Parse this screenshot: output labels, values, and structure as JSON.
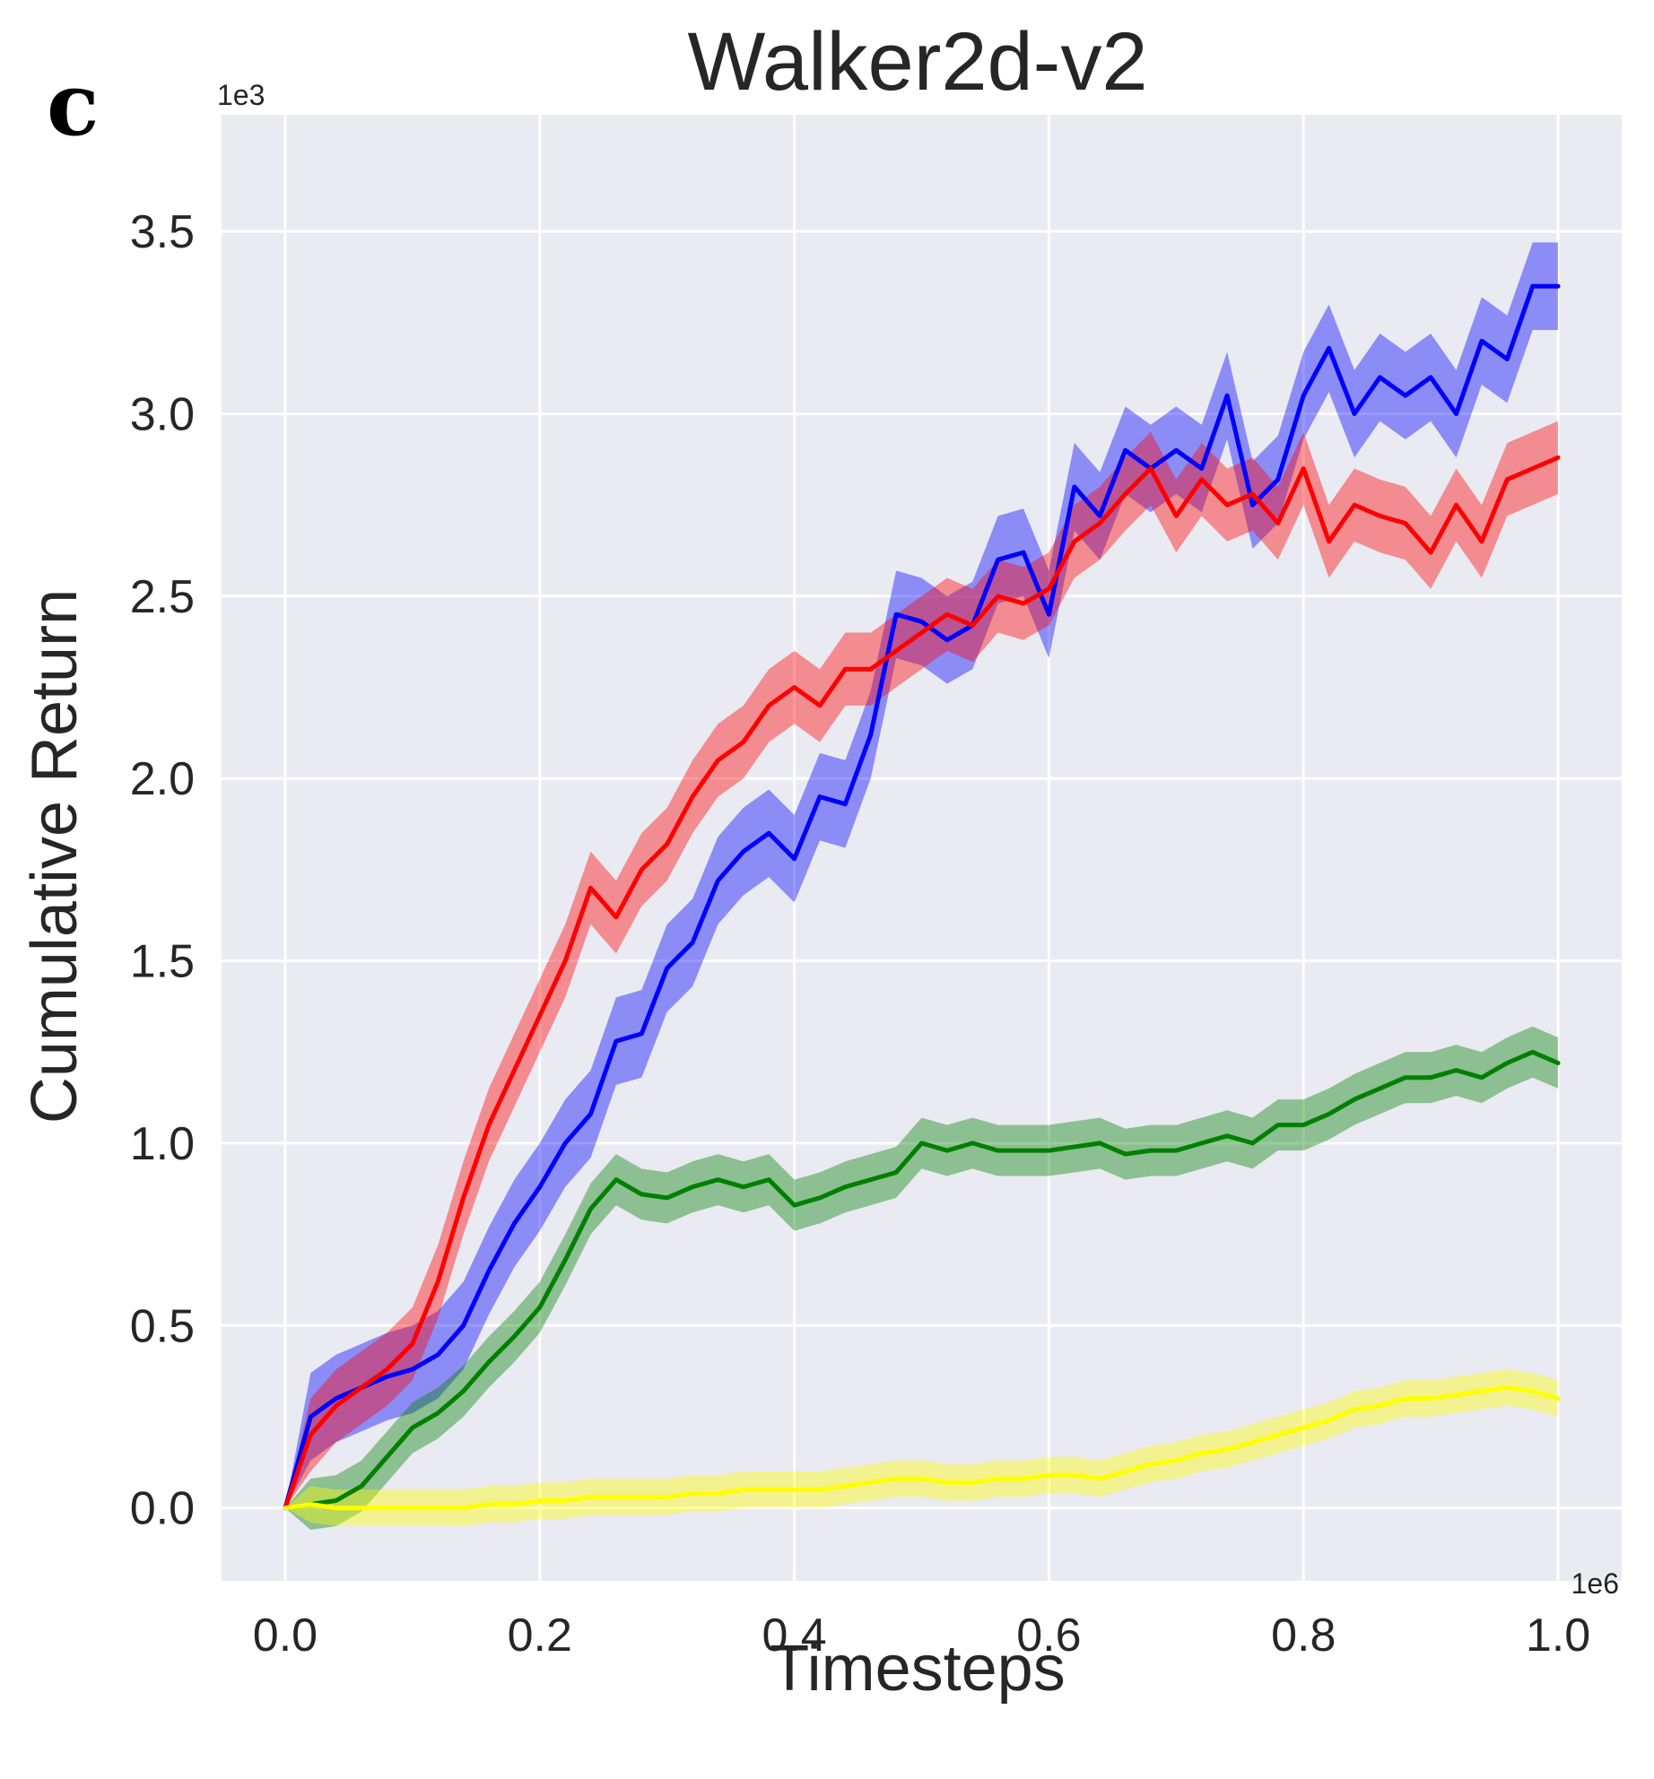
{
  "panel_label": "c",
  "chart_data": {
    "type": "line",
    "title": "Walker2d-v2",
    "xlabel": "Timesteps",
    "ylabel": "Cumulative Return",
    "x_multiplier": "1e6",
    "y_multiplier": "1e3",
    "xlim": [
      -0.05,
      1.05
    ],
    "ylim": [
      -0.2,
      3.82
    ],
    "xticks": [
      0.0,
      0.2,
      0.4,
      0.6,
      0.8,
      1.0
    ],
    "xtick_labels": [
      "0.0",
      "0.2",
      "0.4",
      "0.6",
      "0.8",
      "1.0"
    ],
    "yticks": [
      0.0,
      0.5,
      1.0,
      1.5,
      2.0,
      2.5,
      3.0,
      3.5
    ],
    "ytick_labels": [
      "0.0",
      "0.5",
      "1.0",
      "1.5",
      "2.0",
      "2.5",
      "3.0",
      "3.5"
    ],
    "grid": true,
    "background": "#eaeaf2",
    "x": [
      0.0,
      0.02,
      0.04,
      0.06,
      0.08,
      0.1,
      0.12,
      0.14,
      0.16,
      0.18,
      0.2,
      0.22,
      0.24,
      0.26,
      0.28,
      0.3,
      0.32,
      0.34,
      0.36,
      0.38,
      0.4,
      0.42,
      0.44,
      0.46,
      0.48,
      0.5,
      0.52,
      0.54,
      0.56,
      0.58,
      0.6,
      0.62,
      0.64,
      0.66,
      0.68,
      0.7,
      0.72,
      0.74,
      0.76,
      0.78,
      0.8,
      0.82,
      0.84,
      0.86,
      0.88,
      0.9,
      0.92,
      0.94,
      0.96,
      0.98,
      1.0
    ],
    "series": [
      {
        "name": "blue",
        "color": "#0000ff",
        "values": [
          0.0,
          0.25,
          0.3,
          0.33,
          0.36,
          0.38,
          0.42,
          0.5,
          0.65,
          0.78,
          0.88,
          1.0,
          1.08,
          1.28,
          1.3,
          1.48,
          1.55,
          1.72,
          1.8,
          1.85,
          1.78,
          1.95,
          1.93,
          2.12,
          2.45,
          2.43,
          2.38,
          2.42,
          2.6,
          2.62,
          2.45,
          2.8,
          2.72,
          2.9,
          2.85,
          2.9,
          2.85,
          3.05,
          2.75,
          2.82,
          3.05,
          3.18,
          3.0,
          3.1,
          3.05,
          3.1,
          3.0,
          3.2,
          3.15,
          3.35,
          3.35
        ],
        "band": 0.12
      },
      {
        "name": "red",
        "color": "#ff0000",
        "values": [
          0.0,
          0.2,
          0.28,
          0.33,
          0.38,
          0.45,
          0.62,
          0.85,
          1.05,
          1.2,
          1.35,
          1.5,
          1.7,
          1.62,
          1.75,
          1.82,
          1.95,
          2.05,
          2.1,
          2.2,
          2.25,
          2.2,
          2.3,
          2.3,
          2.35,
          2.4,
          2.45,
          2.42,
          2.5,
          2.48,
          2.52,
          2.65,
          2.7,
          2.78,
          2.85,
          2.72,
          2.82,
          2.75,
          2.78,
          2.7,
          2.85,
          2.65,
          2.75,
          2.72,
          2.7,
          2.62,
          2.75,
          2.65,
          2.82,
          2.85,
          2.88
        ],
        "band": 0.1
      },
      {
        "name": "green",
        "color": "#008000",
        "values": [
          0.0,
          0.01,
          0.02,
          0.06,
          0.14,
          0.22,
          0.26,
          0.32,
          0.4,
          0.47,
          0.55,
          0.68,
          0.82,
          0.9,
          0.86,
          0.85,
          0.88,
          0.9,
          0.88,
          0.9,
          0.83,
          0.85,
          0.88,
          0.9,
          0.92,
          1.0,
          0.98,
          1.0,
          0.98,
          0.98,
          0.98,
          0.99,
          1.0,
          0.97,
          0.98,
          0.98,
          1.0,
          1.02,
          1.0,
          1.05,
          1.05,
          1.08,
          1.12,
          1.15,
          1.18,
          1.18,
          1.2,
          1.18,
          1.22,
          1.25,
          1.22
        ],
        "band": 0.07
      },
      {
        "name": "yellow",
        "color": "#ffff00",
        "values": [
          0.0,
          0.01,
          0.0,
          0.0,
          0.0,
          0.0,
          0.0,
          0.0,
          0.01,
          0.01,
          0.02,
          0.02,
          0.03,
          0.03,
          0.03,
          0.03,
          0.04,
          0.04,
          0.05,
          0.05,
          0.05,
          0.05,
          0.06,
          0.07,
          0.08,
          0.08,
          0.07,
          0.07,
          0.08,
          0.08,
          0.09,
          0.09,
          0.08,
          0.1,
          0.12,
          0.13,
          0.15,
          0.16,
          0.18,
          0.2,
          0.22,
          0.24,
          0.27,
          0.28,
          0.3,
          0.3,
          0.31,
          0.32,
          0.33,
          0.32,
          0.3
        ],
        "band": 0.05
      }
    ]
  }
}
